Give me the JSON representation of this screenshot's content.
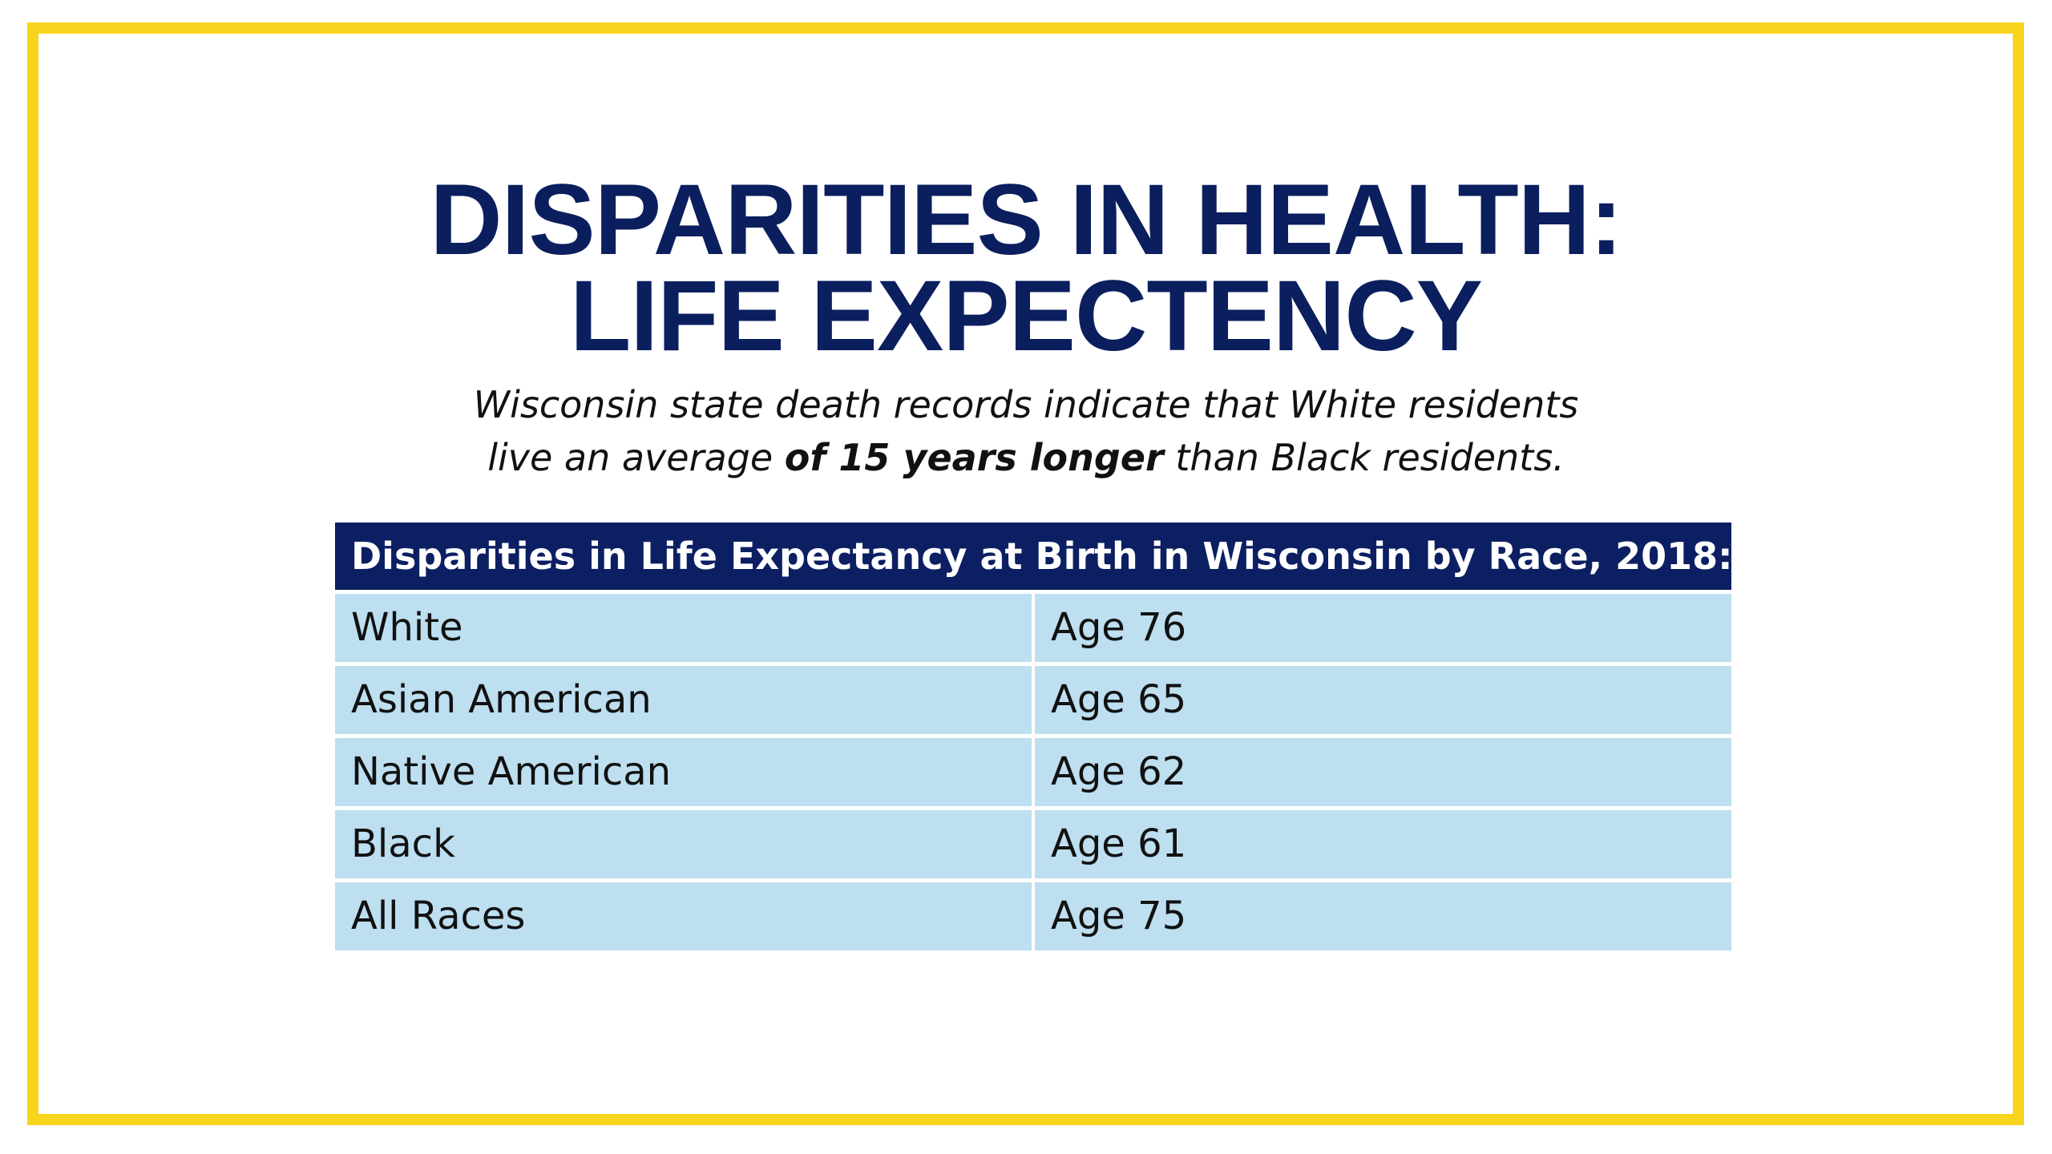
{
  "slide": {
    "title_line1": "DISPARITIES IN HEALTH:",
    "title_line2": "LIFE EXPECTENCY",
    "subtitle_line1": "Wisconsin state death records indicate that White residents",
    "subtitle_line2_pre": "live an average ",
    "subtitle_line2_bold": "of 15 years longer",
    "subtitle_line2_post": " than Black residents."
  },
  "table": {
    "header": "Disparities in Life Expectancy at Birth in Wisconsin by Race, 2018:",
    "rows": [
      {
        "race": "White",
        "age": "Age 76"
      },
      {
        "race": "Asian American",
        "age": "Age 65"
      },
      {
        "race": "Native American",
        "age": "Age 62"
      },
      {
        "race": "Black",
        "age": "Age 61"
      },
      {
        "race": "All Races",
        "age": "Age 75"
      }
    ]
  },
  "colors": {
    "frame": "#f7d51d",
    "title": "#0b1f5e",
    "header_bg": "#0c1f63",
    "cell_bg": "#bddff0"
  }
}
